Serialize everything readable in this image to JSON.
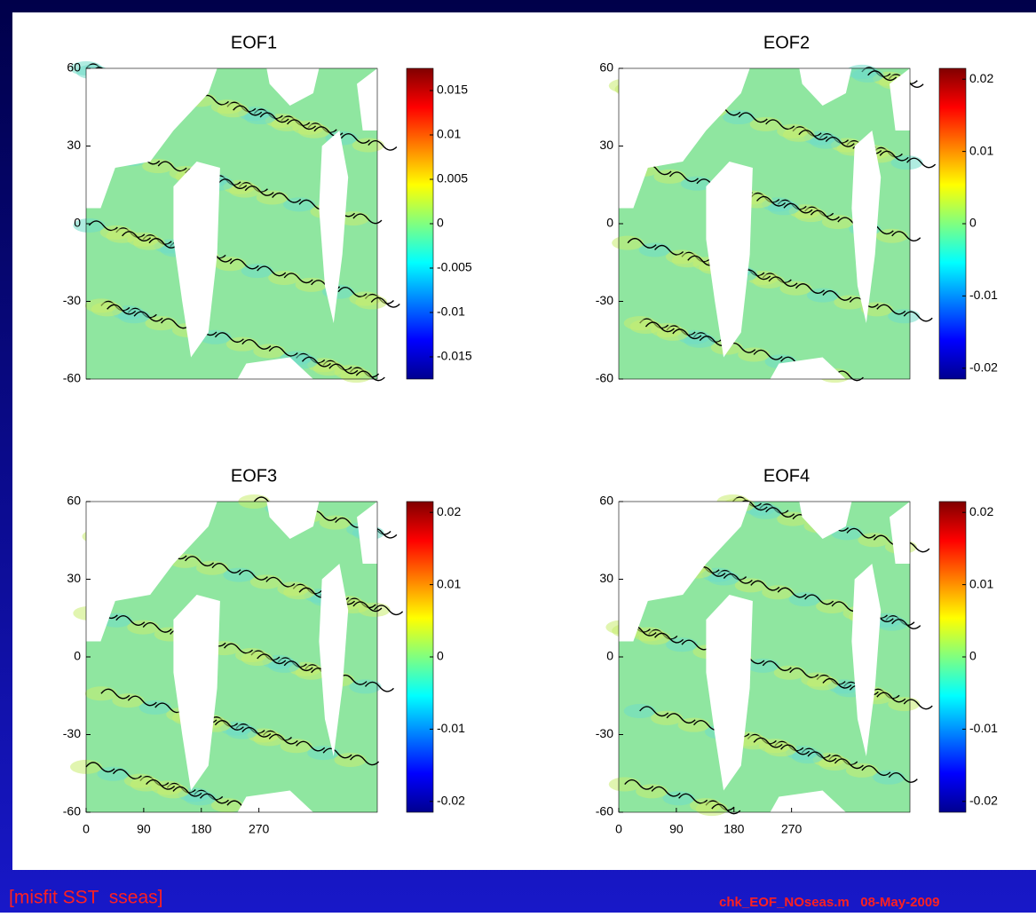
{
  "chart_data": [
    {
      "type": "map",
      "title": "EOF1",
      "xlim": [
        0,
        455
      ],
      "ylim": [
        -60,
        60
      ],
      "yticks": [
        -60,
        -30,
        0,
        30,
        60
      ],
      "colorbar": {
        "lim": [
          -0.0175,
          0.0175
        ],
        "ticks": [
          -0.015,
          -0.01,
          -0.005,
          0,
          0.005,
          0.01,
          0.015
        ]
      }
    },
    {
      "type": "map",
      "title": "EOF2",
      "xlim": [
        0,
        455
      ],
      "ylim": [
        -60,
        60
      ],
      "yticks": [
        -60,
        -30,
        0,
        30,
        60
      ],
      "colorbar": {
        "lim": [
          -0.0215,
          0.0215
        ],
        "ticks": [
          -0.02,
          -0.01,
          0,
          0.01,
          0.02
        ]
      }
    },
    {
      "type": "map",
      "title": "EOF3",
      "xlim": [
        0,
        455
      ],
      "ylim": [
        -60,
        60
      ],
      "xticks": [
        0,
        90,
        180,
        270
      ],
      "yticks": [
        -60,
        -30,
        0,
        30,
        60
      ],
      "colorbar": {
        "lim": [
          -0.0215,
          0.0215
        ],
        "ticks": [
          -0.02,
          -0.01,
          0,
          0.01,
          0.02
        ]
      }
    },
    {
      "type": "map",
      "title": "EOF4",
      "xlim": [
        0,
        455
      ],
      "ylim": [
        -60,
        60
      ],
      "xticks": [
        0,
        90,
        180,
        270
      ],
      "yticks": [
        -60,
        -30,
        0,
        30,
        60
      ],
      "colorbar": {
        "lim": [
          -0.0215,
          0.0215
        ],
        "ticks": [
          -0.02,
          -0.01,
          0,
          0.01,
          0.02
        ]
      }
    }
  ],
  "footer_left": "[misfit SST  sseas]",
  "footer_right": "chk_EOF_NOseas.m   08-May-2009"
}
